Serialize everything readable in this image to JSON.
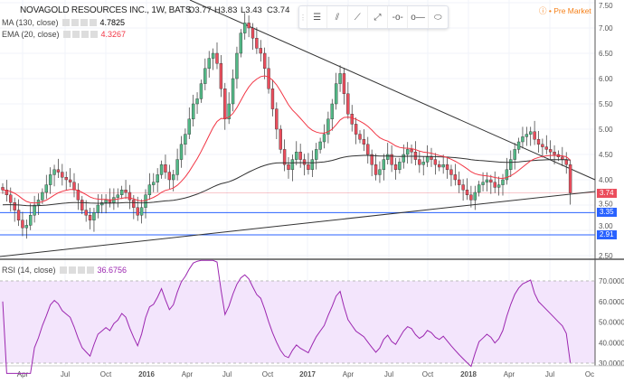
{
  "header": {
    "symbol": "NOVAGOLD RESOURCES INC., 1W, BATS",
    "open": "O3.77",
    "high": "H3.83",
    "low": "L3.43",
    "close": "C3.74",
    "pre_market": "Pre Market"
  },
  "indicators": {
    "ma_label": "MA (130, close)",
    "ma_value": "4.7825",
    "ema_label": "EMA (20, close)",
    "ema_value": "4.3267",
    "rsi_label": "RSI (14, close)",
    "rsi_value": "36.6756"
  },
  "toolbar": [
    "horizontal-lines-icon",
    "parallel-channel-icon",
    "trend-line-icon",
    "ray-icon",
    "horizontal-ray-icon",
    "horizontal-line-icon",
    "ellipse-icon"
  ],
  "colors": {
    "up": "#53b987",
    "down": "#eb4d5c",
    "ema": "#f23645",
    "ma": "#333333",
    "rsi": "#9c27b0",
    "rsi_band": "#f3e5fc",
    "level": "#2962ff"
  },
  "chart_data": {
    "type": "candlestick",
    "price_axis": {
      "min": 2.5,
      "max": 7.5,
      "ticks": [
        "7.50",
        "7.00",
        "6.50",
        "6.00",
        "5.50",
        "5.00",
        "4.50",
        "4.00",
        "3.50",
        "3.00",
        "2.50"
      ]
    },
    "rsi_axis": {
      "ticks": [
        "70.0000",
        "60.0000",
        "50.0000",
        "40.0000",
        "30.0000"
      ],
      "band": [
        30,
        70
      ]
    },
    "time_ticks": [
      "Apr",
      "Jul",
      "Oct",
      "2016",
      "Apr",
      "Jul",
      "Oct",
      "2017",
      "Apr",
      "Jul",
      "Oct",
      "2018",
      "Apr",
      "Jul",
      "Oc"
    ],
    "weekly_closes": [
      3.8,
      3.7,
      3.55,
      3.4,
      3.2,
      3.05,
      3.1,
      3.3,
      3.5,
      3.6,
      3.75,
      3.9,
      4.1,
      4.2,
      4.15,
      4.05,
      4.0,
      3.95,
      3.8,
      3.6,
      3.4,
      3.3,
      3.2,
      3.35,
      3.5,
      3.55,
      3.6,
      3.55,
      3.65,
      3.7,
      3.8,
      3.75,
      3.6,
      3.45,
      3.3,
      3.45,
      3.7,
      3.9,
      3.95,
      4.1,
      4.3,
      4.15,
      4.0,
      4.1,
      4.4,
      4.7,
      4.9,
      5.2,
      5.5,
      5.6,
      5.9,
      6.2,
      6.4,
      6.5,
      6.3,
      5.8,
      5.2,
      5.5,
      6.0,
      6.5,
      6.9,
      7.1,
      7.0,
      6.8,
      6.6,
      6.5,
      6.2,
      5.8,
      5.4,
      5.0,
      4.6,
      4.3,
      4.2,
      4.4,
      4.55,
      4.4,
      4.3,
      4.2,
      4.4,
      4.6,
      4.75,
      4.9,
      5.2,
      5.5,
      5.9,
      6.1,
      5.7,
      5.3,
      5.1,
      4.9,
      4.8,
      4.7,
      4.5,
      4.3,
      4.1,
      4.2,
      4.4,
      4.5,
      4.3,
      4.2,
      4.35,
      4.5,
      4.6,
      4.55,
      4.4,
      4.3,
      4.35,
      4.45,
      4.4,
      4.3,
      4.25,
      4.3,
      4.2,
      4.1,
      4.0,
      3.9,
      3.8,
      3.7,
      3.6,
      3.75,
      3.9,
      3.95,
      4.0,
      3.95,
      3.85,
      3.9,
      4.0,
      4.2,
      4.4,
      4.6,
      4.75,
      4.85,
      4.9,
      4.95,
      4.8,
      4.7,
      4.65,
      4.6,
      4.55,
      4.5,
      4.45,
      4.4,
      4.3,
      3.74
    ],
    "levels": [
      {
        "value": 3.74,
        "label": "3.74",
        "color": "#eb4d5c"
      },
      {
        "value": 3.35,
        "label": "3.35",
        "color": "#2962ff"
      },
      {
        "value": 2.91,
        "label": "2.91",
        "color": "#2962ff"
      }
    ]
  }
}
